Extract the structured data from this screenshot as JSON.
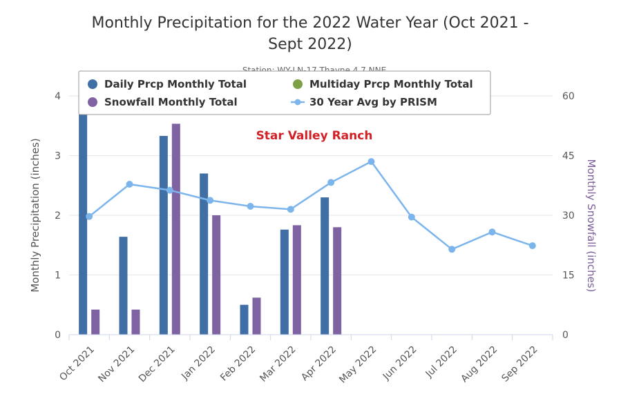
{
  "chart_data": {
    "type": "bar",
    "title": "Monthly Precipitation for the 2022 Water Year (Oct 2021 - Sept 2022)",
    "subtitle": "Station: WY-LN-17 Thayne 4.7 NNE",
    "annotation": "Star Valley Ranch",
    "categories": [
      "Oct 2021",
      "Nov 2021",
      "Dec 2021",
      "Jan 2022",
      "Feb 2022",
      "Mar 2022",
      "Apr 2022",
      "May 2022",
      "Jun 2022",
      "Jul 2022",
      "Aug 2022",
      "Sep 2022"
    ],
    "y_left": {
      "label": "Monthly Precipitation (inches)",
      "ylim": [
        0,
        4
      ],
      "ticks": [
        "0",
        "1",
        "2",
        "3",
        "4"
      ],
      "color": "#555555"
    },
    "y_right": {
      "label": "Monthly Snowfall (inches)",
      "ylim": [
        0,
        60
      ],
      "ticks": [
        "0",
        "15",
        "30",
        "45",
        "60"
      ],
      "color": "#7a5e9c"
    },
    "grid": true,
    "legend_position": "top",
    "series": [
      {
        "name": "Daily Prcp Monthly Total",
        "kind": "bar",
        "axis": "left",
        "color": "#3f6fa5",
        "values": [
          4.3,
          1.64,
          3.33,
          2.7,
          0.5,
          1.76,
          2.3,
          null,
          null,
          null,
          null,
          null
        ]
      },
      {
        "name": "Multiday Prcp Monthly Total",
        "kind": "bar",
        "axis": "left",
        "color": "#7ea146",
        "values": [
          null,
          null,
          null,
          null,
          null,
          null,
          null,
          null,
          null,
          null,
          null,
          null
        ]
      },
      {
        "name": "Snowfall Monthly Total",
        "kind": "bar",
        "axis": "right",
        "color": "#7e62a1",
        "values": [
          6.3,
          6.3,
          53,
          30,
          9.3,
          27.5,
          27,
          null,
          null,
          null,
          null,
          null
        ]
      },
      {
        "name": "30 Year Avg by PRISM",
        "kind": "line",
        "axis": "left",
        "color": "#7cb5ec",
        "values": [
          1.98,
          2.52,
          2.42,
          2.25,
          2.15,
          2.1,
          2.55,
          2.9,
          1.97,
          1.43,
          1.72,
          1.49
        ]
      }
    ]
  }
}
